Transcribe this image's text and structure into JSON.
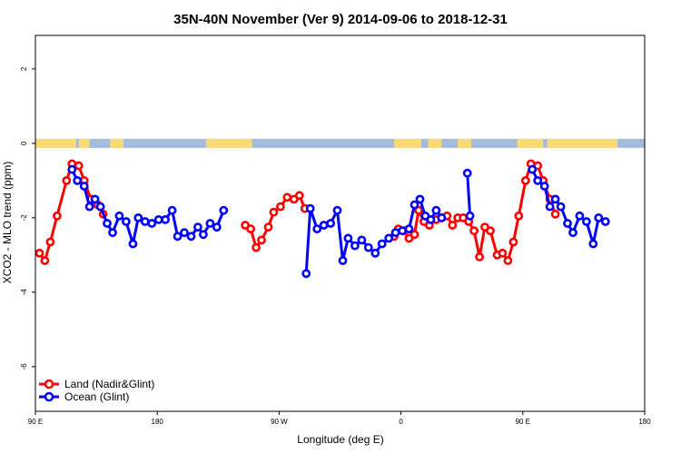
{
  "chart_data": {
    "type": "line",
    "title": "35N-40N November (Ver 9)   2014-09-06 to 2018-12-31",
    "xlabel": "Longitude (deg E)",
    "ylabel": "XCO2 - MLO trend (ppm)",
    "xlim": [
      90,
      540
    ],
    "ylim": [
      -7.2,
      2.9
    ],
    "x_ticks": [
      {
        "value": 90,
        "label": "90 E"
      },
      {
        "value": 180,
        "label": "180"
      },
      {
        "value": 270,
        "label": "90 W"
      },
      {
        "value": 360,
        "label": "0"
      },
      {
        "value": 450,
        "label": "90 E"
      },
      {
        "value": 540,
        "label": "180"
      }
    ],
    "y_ticks": [
      {
        "value": 2,
        "label": "2"
      },
      {
        "value": 0,
        "label": "0"
      },
      {
        "value": -2,
        "label": "-2"
      },
      {
        "value": -4,
        "label": "-4"
      },
      {
        "value": -6,
        "label": "-6"
      }
    ],
    "land_ocean_band": {
      "y": 0,
      "land_color": "#fbd975",
      "ocean_color": "#a4bcdc",
      "land_x_ranges": [
        [
          90,
          120
        ],
        [
          122,
          130
        ],
        [
          145,
          155
        ],
        [
          216,
          250
        ],
        [
          355,
          375
        ],
        [
          380,
          390
        ],
        [
          402,
          412
        ],
        [
          446,
          465
        ],
        [
          468,
          520
        ]
      ]
    },
    "series": [
      {
        "name": "Land (Nadir&Glint)",
        "color": "#ff0000",
        "segments": [
          [
            [
              93,
              -2.95
            ],
            [
              97,
              -3.15
            ],
            [
              101,
              -2.65
            ],
            [
              106,
              -1.95
            ],
            [
              113,
              -1.0
            ],
            [
              117,
              -0.55
            ],
            [
              122,
              -0.6
            ],
            [
              126,
              -1.0
            ],
            [
              131,
              -1.5
            ],
            [
              136,
              -1.65
            ],
            [
              140,
              -1.9
            ]
          ],
          [
            [
              245,
              -2.2
            ],
            [
              249,
              -2.3
            ],
            [
              253,
              -2.8
            ],
            [
              257,
              -2.6
            ],
            [
              262,
              -2.25
            ],
            [
              266,
              -1.85
            ],
            [
              271,
              -1.7
            ],
            [
              276,
              -1.45
            ],
            [
              281,
              -1.5
            ],
            [
              285,
              -1.4
            ],
            [
              289,
              -1.75
            ]
          ],
          [
            [
              355,
              -2.5
            ],
            [
              358,
              -2.3
            ],
            [
              362,
              -2.35
            ],
            [
              366,
              -2.55
            ],
            [
              370,
              -2.45
            ],
            [
              373,
              -1.8
            ],
            [
              377,
              -2.1
            ],
            [
              381,
              -2.2
            ],
            [
              386,
              -2.05
            ],
            [
              390,
              -2.0
            ],
            [
              394,
              -1.95
            ],
            [
              398,
              -2.2
            ],
            [
              402,
              -2.0
            ],
            [
              406,
              -2.0
            ],
            [
              410,
              -2.1
            ],
            [
              414,
              -2.35
            ],
            [
              418,
              -3.05
            ],
            [
              422,
              -2.25
            ],
            [
              426,
              -2.35
            ],
            [
              431,
              -3.0
            ],
            [
              435,
              -2.95
            ],
            [
              439,
              -3.15
            ],
            [
              443,
              -2.65
            ],
            [
              447,
              -1.95
            ],
            [
              452,
              -1.0
            ],
            [
              456,
              -0.55
            ],
            [
              461,
              -0.6
            ],
            [
              465,
              -1.0
            ],
            [
              470,
              -1.5
            ],
            [
              474,
              -1.9
            ]
          ]
        ]
      },
      {
        "name": "Ocean (Glint)",
        "color": "#0000ff",
        "segments": [
          [
            [
              117,
              -0.7
            ],
            [
              121,
              -1.0
            ],
            [
              126,
              -1.15
            ],
            [
              130,
              -1.7
            ],
            [
              134,
              -1.5
            ],
            [
              138,
              -1.7
            ],
            [
              143,
              -2.15
            ],
            [
              147,
              -2.4
            ],
            [
              152,
              -1.95
            ],
            [
              157,
              -2.1
            ],
            [
              162,
              -2.7
            ],
            [
              166,
              -2.0
            ],
            [
              171,
              -2.1
            ],
            [
              176,
              -2.15
            ],
            [
              181,
              -2.05
            ],
            [
              186,
              -2.05
            ],
            [
              191,
              -1.8
            ],
            [
              195,
              -2.5
            ],
            [
              200,
              -2.4
            ],
            [
              205,
              -2.5
            ],
            [
              210,
              -2.25
            ],
            [
              214,
              -2.45
            ],
            [
              219,
              -2.15
            ],
            [
              224,
              -2.25
            ],
            [
              229,
              -1.8
            ]
          ],
          [
            [
              290,
              -3.5
            ],
            [
              293,
              -1.75
            ],
            [
              298,
              -2.3
            ],
            [
              303,
              -2.2
            ],
            [
              308,
              -2.15
            ],
            [
              313,
              -1.8
            ],
            [
              317,
              -3.15
            ],
            [
              321,
              -2.55
            ],
            [
              326,
              -2.75
            ],
            [
              331,
              -2.6
            ],
            [
              336,
              -2.8
            ],
            [
              341,
              -2.95
            ],
            [
              346,
              -2.7
            ],
            [
              351,
              -2.55
            ],
            [
              356,
              -2.4
            ],
            [
              361,
              -2.35
            ],
            [
              366,
              -2.3
            ],
            [
              370,
              -1.65
            ],
            [
              374,
              -1.5
            ],
            [
              378,
              -1.95
            ],
            [
              382,
              -2.05
            ],
            [
              386,
              -1.8
            ],
            [
              390,
              -2.0
            ]
          ],
          [
            [
              409,
              -0.8
            ],
            [
              411,
              -1.95
            ]
          ],
          [
            [
              457,
              -0.7
            ],
            [
              461,
              -1.0
            ],
            [
              466,
              -1.15
            ],
            [
              470,
              -1.7
            ],
            [
              474,
              -1.5
            ],
            [
              478,
              -1.7
            ],
            [
              483,
              -2.15
            ],
            [
              487,
              -2.4
            ],
            [
              492,
              -1.95
            ],
            [
              497,
              -2.1
            ],
            [
              502,
              -2.7
            ],
            [
              506,
              -2.0
            ],
            [
              511,
              -2.1
            ]
          ]
        ]
      }
    ],
    "legend_position": "bottom-left"
  }
}
